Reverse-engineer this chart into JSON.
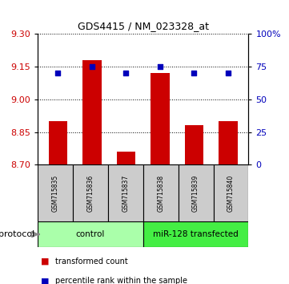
{
  "title": "GDS4415 / NM_023328_at",
  "samples": [
    "GSM715835",
    "GSM715836",
    "GSM715837",
    "GSM715838",
    "GSM715839",
    "GSM715840"
  ],
  "bar_values": [
    8.9,
    9.18,
    8.76,
    9.12,
    8.88,
    8.9
  ],
  "percentile_values": [
    70,
    75,
    70,
    75,
    70,
    70
  ],
  "ylim_left": [
    8.7,
    9.3
  ],
  "ylim_right": [
    0,
    100
  ],
  "left_ticks": [
    8.7,
    8.85,
    9.0,
    9.15,
    9.3
  ],
  "right_ticks": [
    0,
    25,
    50,
    75,
    100
  ],
  "right_tick_labels": [
    "0",
    "25",
    "50",
    "75",
    "100%"
  ],
  "bar_color": "#cc0000",
  "dot_color": "#0000bb",
  "bar_width": 0.55,
  "groups": [
    {
      "label": "control",
      "indices": [
        0,
        1,
        2
      ],
      "color": "#aaffaa"
    },
    {
      "label": "miR-128 transfected",
      "indices": [
        3,
        4,
        5
      ],
      "color": "#44ee44"
    }
  ],
  "protocol_label": "protocol",
  "legend_bar_label": "transformed count",
  "legend_dot_label": "percentile rank within the sample",
  "tick_label_color_left": "#cc0000",
  "tick_label_color_right": "#0000bb",
  "sample_box_color": "#cccccc",
  "title_fontsize": 9
}
